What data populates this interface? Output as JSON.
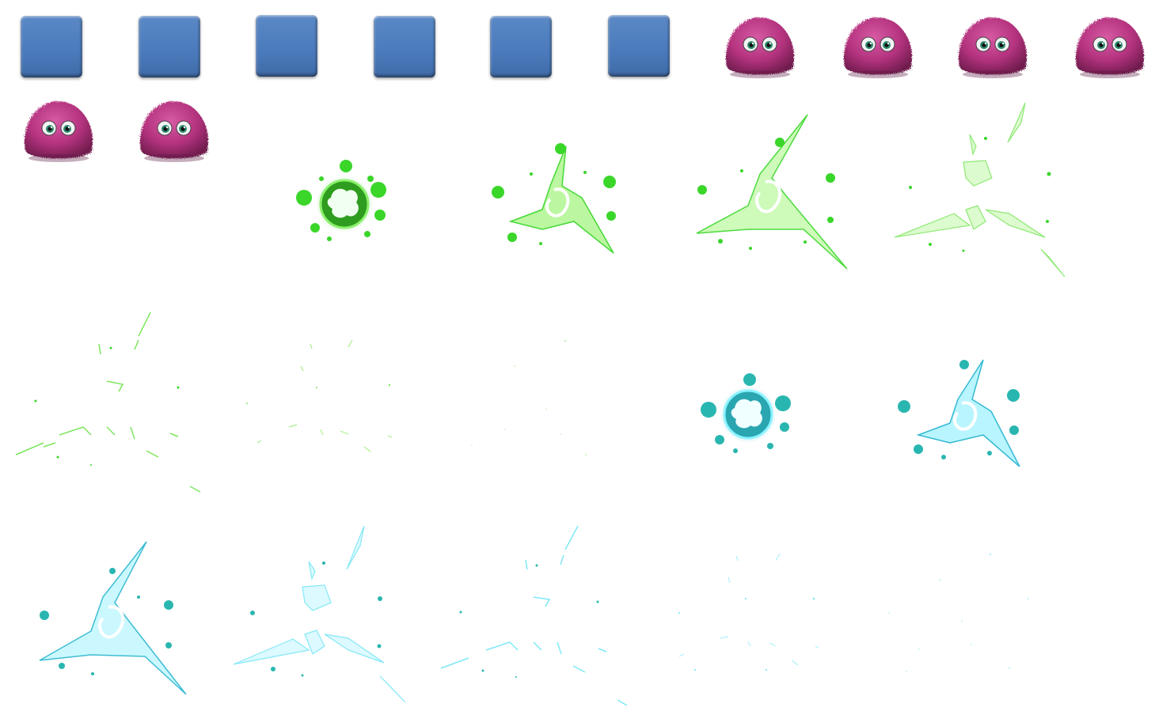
{
  "sprite_sheet": {
    "background": "#ffffff",
    "tiles": {
      "count": 6,
      "color": "#4a7abc"
    },
    "creatures": {
      "count": 6,
      "fur_color": "#b5337f",
      "eye_color": "#2e8a6e"
    },
    "green_burst": {
      "frames": 7,
      "color": "#3ad62a",
      "glow": "#aaf58c"
    },
    "cyan_burst": {
      "frames": 7,
      "color": "#2ab6b0",
      "glow": "#7ff2ff"
    }
  }
}
